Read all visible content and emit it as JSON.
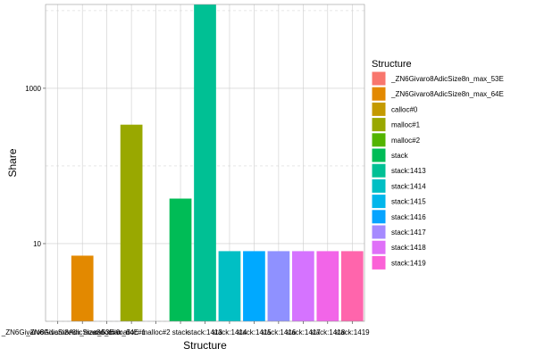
{
  "chart_data": {
    "type": "bar",
    "xlabel": "Structure",
    "ylabel": "Share",
    "y_scale": "log10",
    "ylim": [
      1,
      12000
    ],
    "y_major_ticks": [
      10,
      1000
    ],
    "y_tick_labels": [
      "10",
      "1000"
    ],
    "y_minor_ticks": [
      1,
      100,
      10000
    ],
    "grid": true,
    "legend_title": "Structure",
    "legend_position": "right",
    "categories": [
      "_ZN6Givaro8AdicSize8n_max_53E",
      "_ZN6Givaro8AdicSize8n_max_64E",
      "calloc#0",
      "malloc#1",
      "malloc#2",
      "stack",
      "stack:1413",
      "stack:1414",
      "stack:1415",
      "stack:1416",
      "stack:1417",
      "stack:1418",
      "stack:1419"
    ],
    "x_tick_labels": [
      "_ZN6Givaro8AdicSize8n_max_53E",
      "_ZN6Givaro8AdicSize8n_max_64E",
      "calloc#0",
      "malloc#1",
      "malloc#2",
      "stack",
      "stack:1413",
      "stack:1414",
      "stack:1415",
      "stack:1416",
      "stack:1417",
      "stack:1418",
      "stack:1419"
    ],
    "values": [
      1,
      7,
      1,
      340,
      1,
      38,
      12500,
      8,
      8,
      8,
      8,
      8,
      8
    ],
    "colors": [
      "#F8766D",
      "#E38900",
      "#C49A00",
      "#99A800",
      "#53B400",
      "#00BC56",
      "#00C094",
      "#00BFC4",
      "#00B6EB",
      "#06A4FF",
      "#A58AFF",
      "#DF70F8",
      "#FB61D7",
      "#FF66A8"
    ],
    "legend_colors": [
      "#F8766D",
      "#E38900",
      "#C49A00",
      "#99A800",
      "#53B400",
      "#00BC56",
      "#00C094",
      "#00BFC4",
      "#00B6EB",
      "#06A4FF",
      "#A58AFF",
      "#DF70F8",
      "#FB61D7"
    ],
    "bar_colors": [
      "#F8766D",
      "#E38900",
      "#C49A00",
      "#99A800",
      "#53B400",
      "#00BC56",
      "#00C094",
      "#00BFC4",
      "#00A9FF",
      "#8F91FF",
      "#D573FF",
      "#F265E8",
      "#FF65AC"
    ],
    "panel_background": "#ffffff",
    "grid_major_color": "#cccccc",
    "grid_minor_color": "#d9d9d9"
  }
}
